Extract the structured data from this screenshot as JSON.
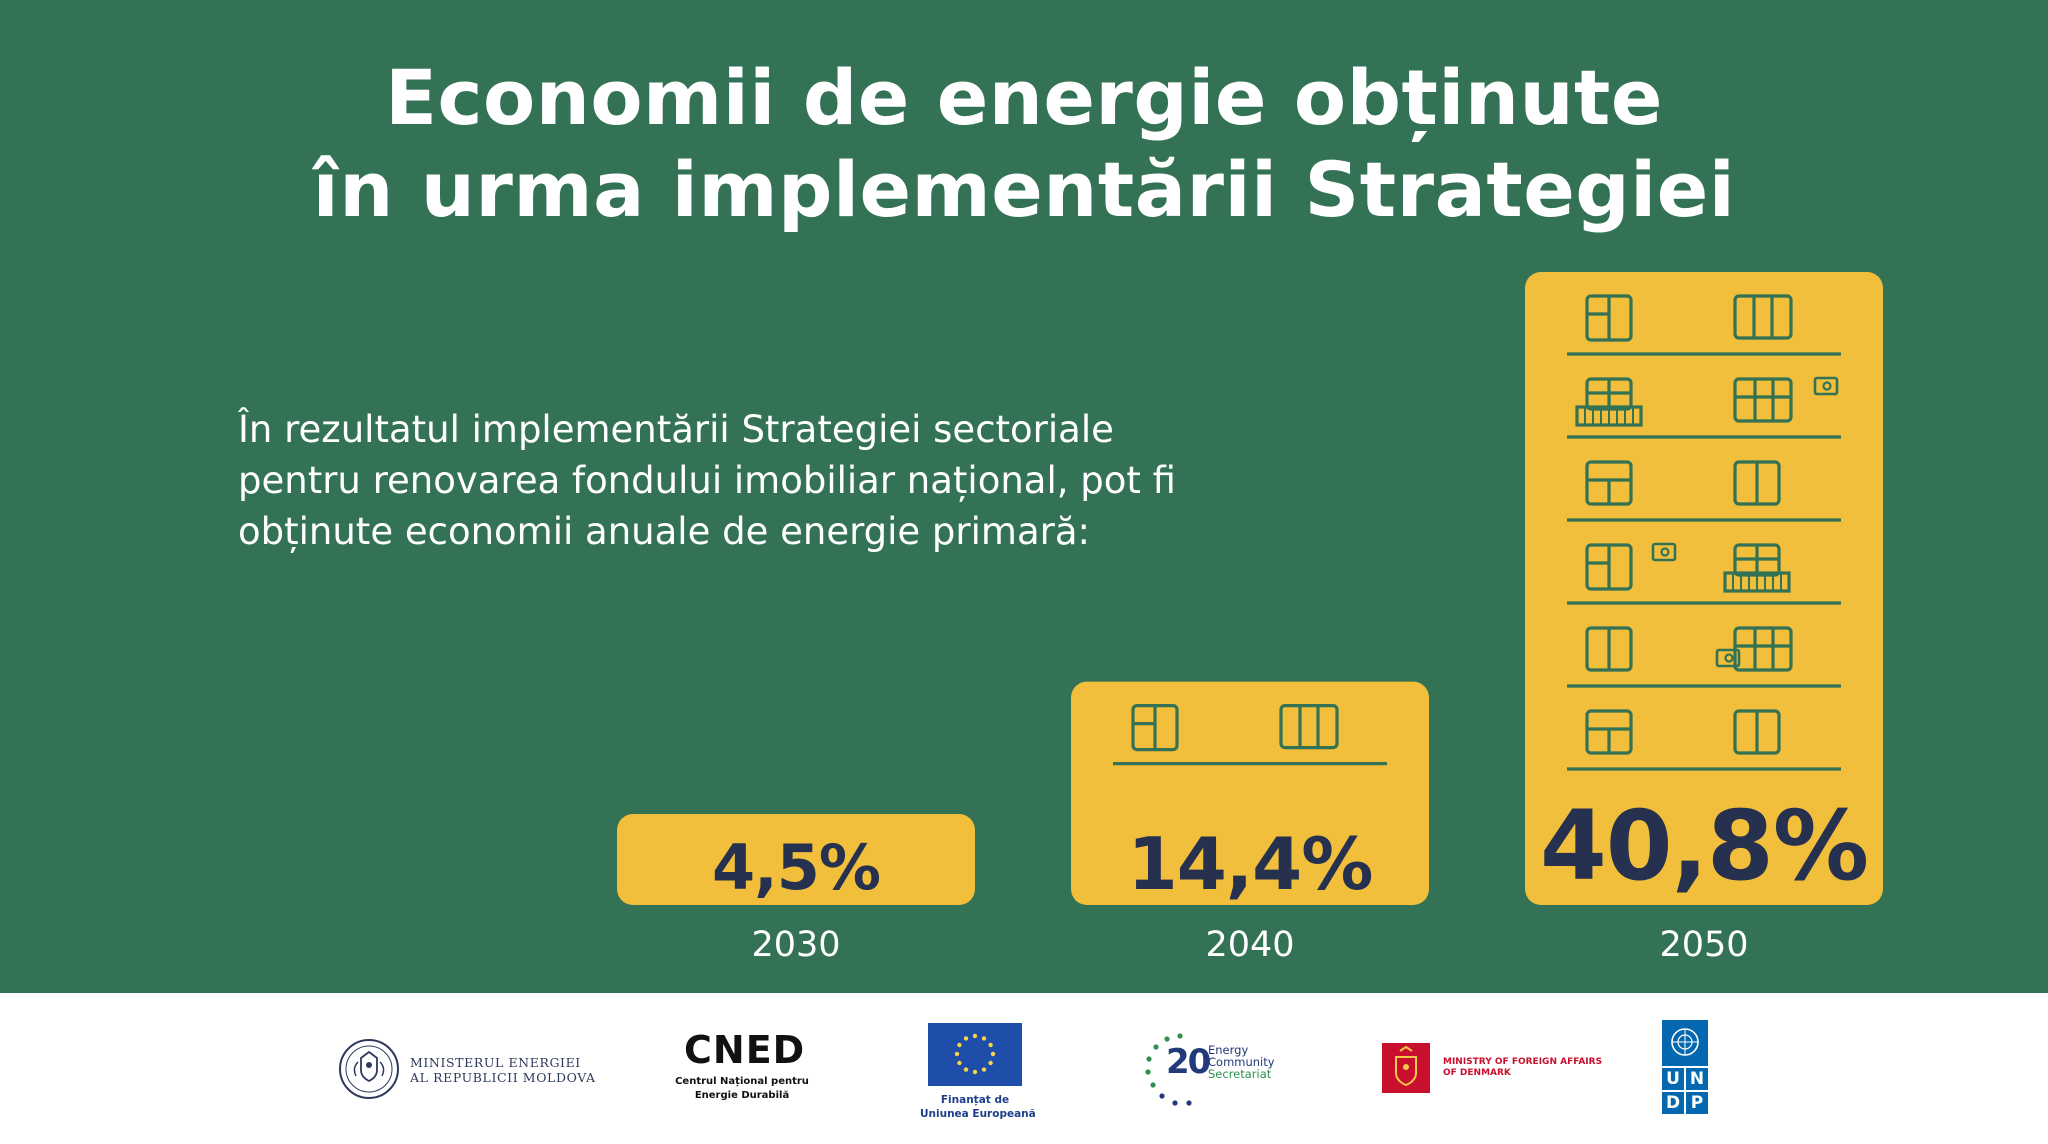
{
  "title": {
    "line1": "Economii de energie obținute",
    "line2": "în urma implementării Strategiei"
  },
  "intro": {
    "line1": "În rezultatul implementării Strategiei sectoriale",
    "line2": "pentru renovarea fondului imobiliar național, pot fi",
    "line3": "obținute economii anuale de energie primară:"
  },
  "colors": {
    "background": "#337254",
    "bar": "#F2BF3D",
    "value_text": "#26304F",
    "icon_stroke": "#337254",
    "footer": "#FFFFFF"
  },
  "chart_data": {
    "type": "bar",
    "title": "",
    "xlabel": "",
    "ylabel": "",
    "categories": [
      "2030",
      "2040",
      "2050"
    ],
    "values": [
      4.5,
      14.4,
      40.8
    ],
    "value_labels": [
      "4,5%",
      "14,4%",
      "40,8%"
    ],
    "unit": "%",
    "ylim": [
      0,
      45
    ],
    "grid": false,
    "legend": "none"
  },
  "footer": {
    "ministry": {
      "line1": "MINISTERUL ENERGIEI",
      "line2": "AL REPUBLICII MOLDOVA",
      "icon": "coat-of-arms-icon"
    },
    "cned": {
      "logo": "CNED",
      "line1": "Centrul Național pentru",
      "line2": "Energie Durabilă"
    },
    "eu": {
      "line1": "Finanțat de",
      "line2": "Uniunea Europeană",
      "icon": "eu-flag-icon"
    },
    "energy_community": {
      "number": "20",
      "line1": "Energy",
      "line2": "Community",
      "line3": "Secretariat"
    },
    "denmark": {
      "line1": "MINISTRY OF FOREIGN AFFAIRS",
      "line2": "OF DENMARK",
      "icon": "danish-crest-icon"
    },
    "undp": {
      "letters": [
        "U",
        "N",
        "D",
        "P"
      ],
      "icon": "un-emblem-icon"
    }
  }
}
